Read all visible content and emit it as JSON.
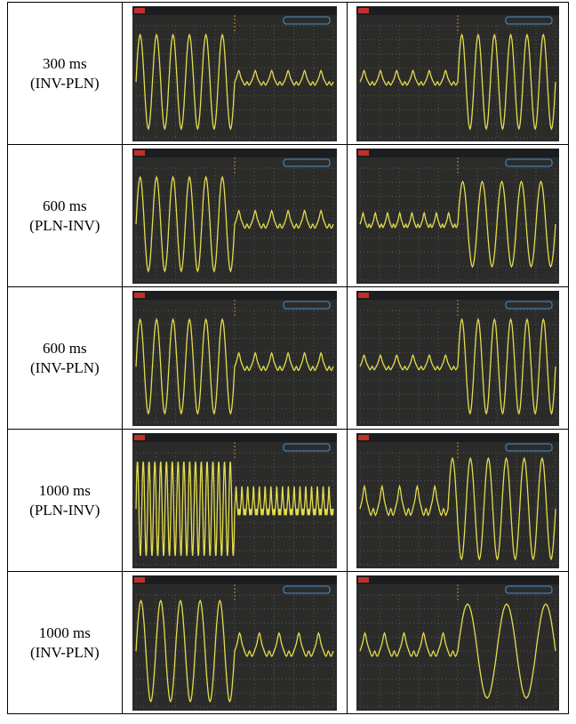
{
  "table": {
    "rows": [
      {
        "time": "300 ms",
        "mode": "(INV-PLN)"
      },
      {
        "time": "600 ms",
        "mode": "(PLN-INV)"
      },
      {
        "time": "600 ms",
        "mode": "(INV-PLN)"
      },
      {
        "time": "1000 ms",
        "mode": "(PLN-INV)"
      },
      {
        "time": "1000 ms",
        "mode": "(INV-PLN)"
      }
    ]
  }
}
